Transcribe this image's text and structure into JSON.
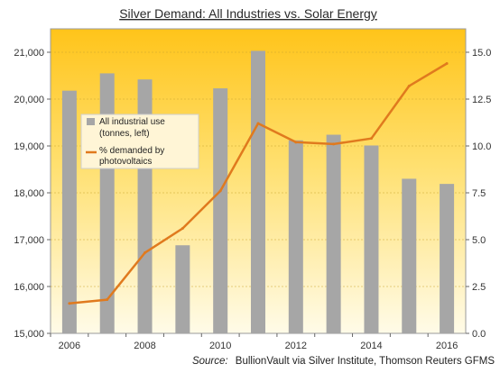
{
  "chart_data": {
    "type": "bar",
    "title": "Silver Demand: All Industries  vs. Solar Energy",
    "source_label": "Source:",
    "source_text": "BullionVault via Silver Institute, Thomson Reuters GFMS",
    "x": [
      2006,
      2007,
      2008,
      2009,
      2010,
      2011,
      2012,
      2013,
      2014,
      2015,
      2016
    ],
    "x_tick_labels": [
      "2006",
      "2008",
      "2010",
      "2012",
      "2014",
      "2016"
    ],
    "y_left": {
      "ylim": [
        15000,
        21500
      ],
      "tick_labels": [
        "15,000",
        "16,000",
        "17,000",
        "18,000",
        "19,000",
        "20,000",
        "21,000"
      ]
    },
    "y_right": {
      "ylim": [
        0,
        16.25
      ],
      "tick_labels": [
        "0.0",
        "2.5",
        "5.0",
        "7.5",
        "10.0",
        "12.5",
        "15.0"
      ]
    },
    "series": [
      {
        "name": "All industrial use (tonnes, left)",
        "legend_lines": [
          "All industrial use",
          "(tonnes, left)"
        ],
        "type": "bar",
        "axis": "left",
        "color": "#a6a6a6",
        "values": [
          20180,
          20550,
          20420,
          16880,
          20230,
          21030,
          19120,
          19240,
          19010,
          18300,
          18190
        ]
      },
      {
        "name": "% demanded by photovoltaics",
        "legend_lines": [
          "% demanded by",
          "photovoltaics"
        ],
        "type": "line",
        "axis": "right",
        "color": "#e07a1e",
        "values": [
          1.6,
          1.8,
          4.3,
          5.6,
          7.6,
          11.2,
          10.2,
          10.1,
          10.4,
          13.2,
          14.4
        ]
      }
    ],
    "grid": "horizontal",
    "legend_position": "upper-left"
  }
}
